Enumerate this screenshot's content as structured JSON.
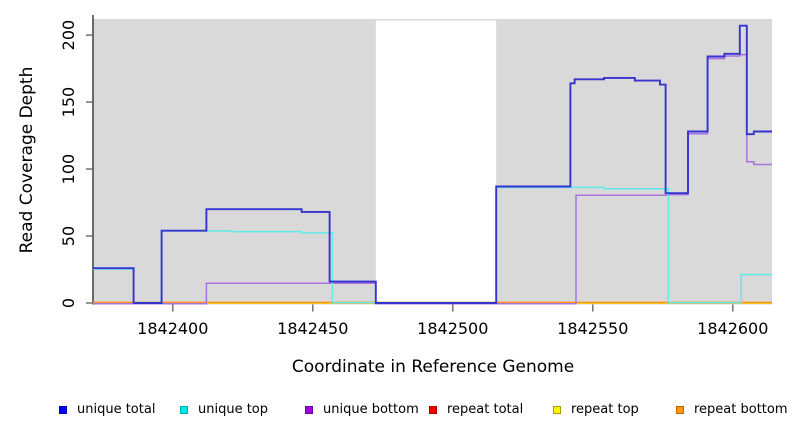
{
  "chart_data": {
    "type": "line",
    "style": "step-coverage-plot",
    "xlabel": "Coordinate in Reference Genome",
    "ylabel": "Read Coverage Depth",
    "xlim": [
      1842371.5,
      1842614
    ],
    "ylim": [
      0,
      212
    ],
    "x_ticks": [
      1842400,
      1842450,
      1842500,
      1842550,
      1842600
    ],
    "x_tick_labels": [
      "1842400",
      "1842450",
      "1842500",
      "1842550",
      "1842600"
    ],
    "y_ticks": [
      0,
      50,
      100,
      150,
      200
    ],
    "y_tick_labels": [
      "0",
      "50",
      "100",
      "150",
      "200"
    ],
    "grid": false,
    "panel_bg": "#d9d9d9",
    "no_data_region": {
      "start": 1842472.5,
      "end": 1842515.5,
      "color": "#ffffff"
    },
    "series": [
      {
        "name": "repeat total",
        "color": "#e23b5e",
        "width": 1.5,
        "dy": 0,
        "steps": [
          [
            1842371.5,
            0
          ]
        ]
      },
      {
        "name": "repeat top",
        "color": "#ffe800",
        "width": 1.5,
        "dy": 0,
        "steps": [
          [
            1842371.5,
            0
          ]
        ]
      },
      {
        "name": "repeat bottom",
        "color": "#ff9414",
        "width": 1.5,
        "dy": -0.6,
        "steps": [
          [
            1842371.5,
            0
          ]
        ]
      },
      {
        "name": "unique bottom",
        "color": "#a873e0",
        "width": 1.5,
        "dy": 0.8,
        "steps": [
          [
            1842371.5,
            0
          ],
          [
            1842412,
            15.3
          ],
          [
            1842472.5,
            0
          ],
          [
            1842544,
            81
          ],
          [
            1842577,
            81.5
          ],
          [
            1842584,
            127
          ],
          [
            1842591,
            183
          ],
          [
            1842597,
            185
          ],
          [
            1842602.5,
            186
          ],
          [
            1842605,
            106
          ],
          [
            1842607.5,
            104
          ]
        ]
      },
      {
        "name": "unique top",
        "color": "#62e9e9",
        "width": 1.5,
        "dy": -0.4,
        "steps": [
          [
            1842371.5,
            25
          ],
          [
            1842386,
            0
          ],
          [
            1842396,
            53.5
          ],
          [
            1842421,
            53
          ],
          [
            1842446,
            52
          ],
          [
            1842457,
            0
          ],
          [
            1842515.5,
            86
          ],
          [
            1842554,
            85
          ],
          [
            1842577,
            0
          ],
          [
            1842603,
            21
          ]
        ]
      },
      {
        "name": "unique total",
        "color": "#3633cf",
        "width": 1.9,
        "dy": 0,
        "steps": [
          [
            1842371.5,
            26
          ],
          [
            1842386,
            0
          ],
          [
            1842396,
            54
          ],
          [
            1842412,
            70
          ],
          [
            1842446,
            68
          ],
          [
            1842456,
            16
          ],
          [
            1842472.5,
            0
          ],
          [
            1842515.5,
            87
          ],
          [
            1842542,
            164
          ],
          [
            1842543.5,
            167
          ],
          [
            1842554,
            168
          ],
          [
            1842565,
            166
          ],
          [
            1842574,
            163
          ],
          [
            1842576,
            82
          ],
          [
            1842584,
            128
          ],
          [
            1842591,
            184
          ],
          [
            1842597,
            186
          ],
          [
            1842602.5,
            207
          ],
          [
            1842605,
            126
          ],
          [
            1842607.5,
            128
          ]
        ]
      }
    ],
    "legend": [
      {
        "label": "unique total",
        "fill": "#0000f5",
        "border": "#0000b0"
      },
      {
        "label": "unique top",
        "fill": "#00e5ee",
        "border": "#00a8b0"
      },
      {
        "label": "unique bottom",
        "fill": "#9c00e0",
        "border": "#6d00a0"
      },
      {
        "label": "repeat total",
        "fill": "#f50000",
        "border": "#b00000"
      },
      {
        "label": "repeat top",
        "fill": "#fff700",
        "border": "#a0a000"
      },
      {
        "label": "repeat bottom",
        "fill": "#ff9800",
        "border": "#b86a00"
      }
    ],
    "legend_position": "bottom"
  },
  "axes": {
    "x_title": "Coordinate in Reference Genome",
    "y_title": "Read Coverage Depth"
  }
}
